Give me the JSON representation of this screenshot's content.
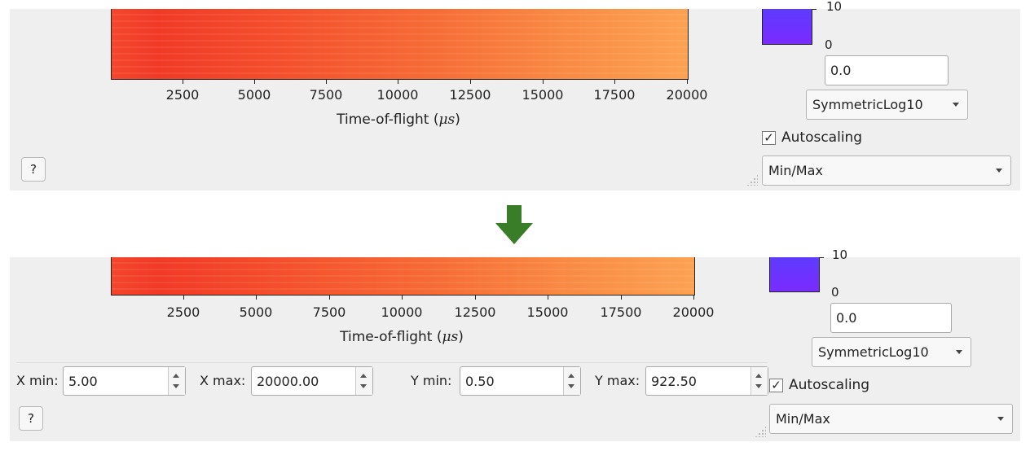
{
  "top_panel": {
    "x_ticks": [
      "2500",
      "5000",
      "7500",
      "10000",
      "12500",
      "15000",
      "17500",
      "20000"
    ],
    "x_axis_title_main": "Time-of-flight (",
    "x_axis_title_unit": "μs",
    "x_axis_title_close": ")",
    "help_label": "?",
    "colorbar_top_label": "10",
    "colorbar_zero_label": "0",
    "color_min_value": "0.0",
    "scale_option": "SymmetricLog10",
    "autoscaling_label": "Autoscaling",
    "autoscaling_checked": "✓",
    "autoscale_mode": "Min/Max"
  },
  "bottom_panel": {
    "x_ticks": [
      "2500",
      "5000",
      "7500",
      "10000",
      "12500",
      "15000",
      "17500",
      "20000"
    ],
    "x_axis_title_main": "Time-of-flight (",
    "x_axis_title_unit": "μs",
    "x_axis_title_close": ")",
    "help_label": "?",
    "colorbar_top_label": "10",
    "colorbar_zero_label": "0",
    "color_min_value": "0.0",
    "scale_option": "SymmetricLog10",
    "autoscaling_label": "Autoscaling",
    "autoscaling_checked": "✓",
    "autoscale_mode": "Min/Max",
    "range": {
      "x_min_label": "X min:",
      "x_min_value": "5.00",
      "x_max_label": "X max:",
      "x_max_value": "20000.00",
      "y_min_label": "Y min:",
      "y_min_value": "0.50",
      "y_max_label": "Y max:",
      "y_max_value": "922.50"
    }
  },
  "colors": {
    "arrow": "#3a7d28",
    "panel_background": "#efefef",
    "colorbar": "#6a33ff"
  },
  "icons": {
    "transition": "down-arrow-icon",
    "resize": "resize-grip-icon"
  }
}
